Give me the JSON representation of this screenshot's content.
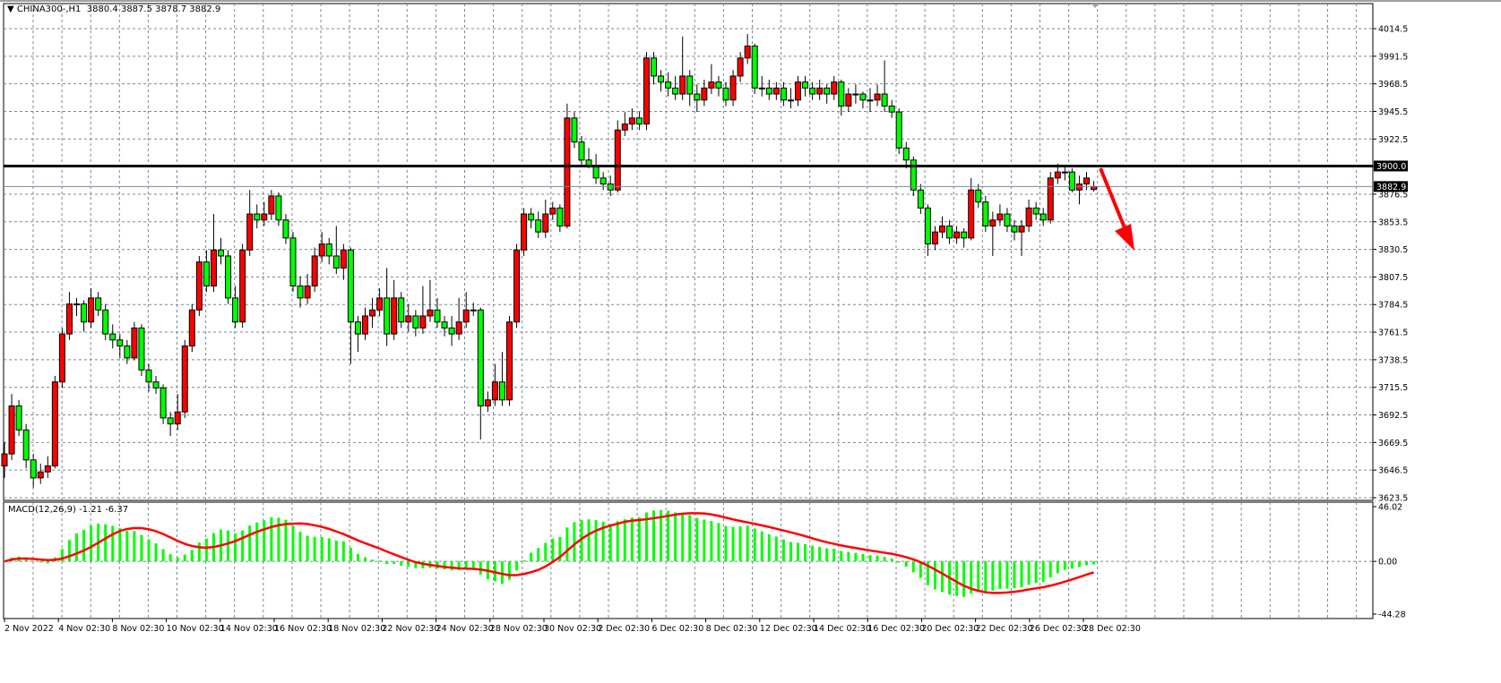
{
  "header": {
    "symbol": "CHINA300-,H1",
    "ohlc_text": "3880.4 3887.5 3878.7 3882.9"
  },
  "macd": {
    "label": "MACD(12,26,9)",
    "main": "-1.21",
    "signal": "-6.37",
    "axis_labels": [
      "46.02",
      "0.00",
      "-44.28"
    ],
    "axis_values": [
      46.02,
      0,
      -44.28
    ],
    "histogram_color": "#00ff00",
    "signal_color": "#ff0000"
  },
  "chart_data": {
    "type": "candlestick",
    "symbol": "CHINA300-",
    "timeframe": "H1",
    "ylim": [
      3623.5,
      4014.5
    ],
    "y_ticks": [
      "4014.5",
      "3991.5",
      "3968.5",
      "3945.5",
      "3922.5",
      "3876.5",
      "3853.5",
      "3830.5",
      "3807.5",
      "3784.5",
      "3761.5",
      "3738.5",
      "3715.5",
      "3692.5",
      "3669.5",
      "3646.5",
      "3623.5"
    ],
    "x_ticks": [
      "2 Nov 2022",
      "4 Nov 02:30",
      "8 Nov 02:30",
      "10 Nov 02:30",
      "14 Nov 02:30",
      "16 Nov 02:30",
      "18 Nov 02:30",
      "22 Nov 02:30",
      "24 Nov 02:30",
      "28 Nov 02:30",
      "30 Nov 02:30",
      "2 Dec 02:30",
      "6 Dec 02:30",
      "8 Dec 02:30",
      "12 Dec 02:30",
      "14 Dec 02:30",
      "16 Dec 02:30",
      "20 Dec 02:30",
      "22 Dec 02:30",
      "26 Dec 02:30",
      "28 Dec 02:30"
    ],
    "grid": true,
    "bull_color": "#ff0000",
    "bear_color": "#00ff00",
    "horizontal_line": {
      "value": 3900.0,
      "label": "3900.0",
      "color": "#000000"
    },
    "bid_line": {
      "value": 3882.9,
      "label": "3882.9",
      "color": "#778899"
    },
    "annotation": {
      "type": "arrow",
      "direction": "down",
      "color": "#ff0000"
    },
    "ohlc": [
      [
        3650,
        3670,
        3640,
        3660
      ],
      [
        3660,
        3710,
        3655,
        3700
      ],
      [
        3700,
        3705,
        3675,
        3680
      ],
      [
        3680,
        3685,
        3648,
        3655
      ],
      [
        3655,
        3660,
        3632,
        3640
      ],
      [
        3640,
        3652,
        3635,
        3645
      ],
      [
        3645,
        3658,
        3640,
        3650
      ],
      [
        3650,
        3725,
        3648,
        3720
      ],
      [
        3720,
        3765,
        3715,
        3760
      ],
      [
        3760,
        3795,
        3755,
        3785
      ],
      [
        3785,
        3790,
        3775,
        3785
      ],
      [
        3785,
        3788,
        3762,
        3770
      ],
      [
        3770,
        3798,
        3765,
        3790
      ],
      [
        3790,
        3795,
        3775,
        3780
      ],
      [
        3780,
        3785,
        3755,
        3760
      ],
      [
        3760,
        3768,
        3748,
        3755
      ],
      [
        3755,
        3760,
        3740,
        3750
      ],
      [
        3750,
        3755,
        3735,
        3740
      ],
      [
        3740,
        3770,
        3738,
        3765
      ],
      [
        3765,
        3768,
        3725,
        3730
      ],
      [
        3730,
        3735,
        3712,
        3720
      ],
      [
        3720,
        3725,
        3710,
        3715
      ],
      [
        3715,
        3718,
        3685,
        3690
      ],
      [
        3690,
        3695,
        3675,
        3685
      ],
      [
        3685,
        3710,
        3680,
        3695
      ],
      [
        3695,
        3755,
        3690,
        3750
      ],
      [
        3750,
        3785,
        3745,
        3780
      ],
      [
        3780,
        3825,
        3775,
        3820
      ],
      [
        3820,
        3830,
        3795,
        3800
      ],
      [
        3800,
        3860,
        3795,
        3830
      ],
      [
        3830,
        3840,
        3818,
        3825
      ],
      [
        3825,
        3830,
        3785,
        3790
      ],
      [
        3790,
        3800,
        3765,
        3770
      ],
      [
        3770,
        3835,
        3765,
        3830
      ],
      [
        3830,
        3880,
        3825,
        3860
      ],
      [
        3860,
        3868,
        3848,
        3855
      ],
      [
        3855,
        3870,
        3850,
        3860
      ],
      [
        3860,
        3880,
        3855,
        3875
      ],
      [
        3875,
        3878,
        3850,
        3855
      ],
      [
        3855,
        3860,
        3835,
        3840
      ],
      [
        3840,
        3845,
        3795,
        3800
      ],
      [
        3800,
        3808,
        3782,
        3790
      ],
      [
        3790,
        3810,
        3785,
        3800
      ],
      [
        3800,
        3832,
        3795,
        3825
      ],
      [
        3825,
        3845,
        3820,
        3835
      ],
      [
        3835,
        3840,
        3818,
        3825
      ],
      [
        3825,
        3850,
        3810,
        3815
      ],
      [
        3815,
        3835,
        3805,
        3830
      ],
      [
        3830,
        3832,
        3735,
        3770
      ],
      [
        3770,
        3775,
        3745,
        3760
      ],
      [
        3760,
        3782,
        3755,
        3775
      ],
      [
        3775,
        3790,
        3765,
        3780
      ],
      [
        3780,
        3798,
        3775,
        3790
      ],
      [
        3790,
        3815,
        3750,
        3760
      ],
      [
        3760,
        3805,
        3755,
        3790
      ],
      [
        3790,
        3795,
        3765,
        3770
      ],
      [
        3770,
        3785,
        3762,
        3775
      ],
      [
        3775,
        3780,
        3758,
        3765
      ],
      [
        3765,
        3800,
        3760,
        3775
      ],
      [
        3775,
        3805,
        3770,
        3780
      ],
      [
        3780,
        3790,
        3765,
        3770
      ],
      [
        3770,
        3775,
        3758,
        3765
      ],
      [
        3765,
        3775,
        3750,
        3760
      ],
      [
        3760,
        3790,
        3755,
        3770
      ],
      [
        3770,
        3795,
        3765,
        3780
      ],
      [
        3780,
        3786,
        3775,
        3780
      ],
      [
        3780,
        3782,
        3672,
        3700
      ],
      [
        3700,
        3712,
        3695,
        3705
      ],
      [
        3705,
        3735,
        3700,
        3720
      ],
      [
        3720,
        3745,
        3700,
        3705
      ],
      [
        3705,
        3775,
        3700,
        3770
      ],
      [
        3770,
        3835,
        3765,
        3830
      ],
      [
        3830,
        3865,
        3825,
        3860
      ],
      [
        3860,
        3865,
        3848,
        3855
      ],
      [
        3855,
        3862,
        3840,
        3845
      ],
      [
        3845,
        3872,
        3840,
        3860
      ],
      [
        3860,
        3870,
        3855,
        3865
      ],
      [
        3865,
        3868,
        3845,
        3850
      ],
      [
        3850,
        3952,
        3848,
        3940
      ],
      [
        3940,
        3945,
        3915,
        3920
      ],
      [
        3920,
        3925,
        3900,
        3905
      ],
      [
        3905,
        3915,
        3898,
        3900
      ],
      [
        3900,
        3910,
        3885,
        3890
      ],
      [
        3890,
        3895,
        3880,
        3885
      ],
      [
        3885,
        3892,
        3875,
        3880
      ],
      [
        3880,
        3938,
        3878,
        3930
      ],
      [
        3930,
        3945,
        3925,
        3935
      ],
      [
        3935,
        3948,
        3930,
        3940
      ],
      [
        3940,
        3945,
        3930,
        3935
      ],
      [
        3935,
        3995,
        3930,
        3990
      ],
      [
        3990,
        3995,
        3968,
        3975
      ],
      [
        3975,
        3980,
        3962,
        3970
      ],
      [
        3970,
        3978,
        3958,
        3965
      ],
      [
        3965,
        3975,
        3955,
        3960
      ],
      [
        3960,
        4008,
        3955,
        3975
      ],
      [
        3975,
        3980,
        3950,
        3960
      ],
      [
        3960,
        3968,
        3945,
        3955
      ],
      [
        3955,
        3972,
        3950,
        3965
      ],
      [
        3965,
        3985,
        3960,
        3970
      ],
      [
        3970,
        3975,
        3958,
        3965
      ],
      [
        3965,
        3970,
        3950,
        3955
      ],
      [
        3955,
        3980,
        3950,
        3975
      ],
      [
        3975,
        3995,
        3970,
        3990
      ],
      [
        3990,
        4010,
        3985,
        4000
      ],
      [
        4000,
        4002,
        3960,
        3965
      ],
      [
        3965,
        3975,
        3958,
        3965
      ],
      [
        3965,
        3972,
        3955,
        3960
      ],
      [
        3960,
        3970,
        3955,
        3965
      ],
      [
        3965,
        3970,
        3950,
        3955
      ],
      [
        3955,
        3965,
        3948,
        3955
      ],
      [
        3955,
        3975,
        3950,
        3970
      ],
      [
        3970,
        3975,
        3958,
        3965
      ],
      [
        3965,
        3970,
        3955,
        3960
      ],
      [
        3960,
        3972,
        3955,
        3965
      ],
      [
        3965,
        3968,
        3952,
        3960
      ],
      [
        3960,
        3975,
        3955,
        3970
      ],
      [
        3970,
        3972,
        3942,
        3950
      ],
      [
        3950,
        3965,
        3945,
        3960
      ],
      [
        3960,
        3968,
        3952,
        3960
      ],
      [
        3960,
        3962,
        3948,
        3955
      ],
      [
        3955,
        3965,
        3945,
        3955
      ],
      [
        3955,
        3968,
        3950,
        3960
      ],
      [
        3960,
        3988,
        3945,
        3950
      ],
      [
        3950,
        3955,
        3940,
        3945
      ],
      [
        3945,
        3948,
        3910,
        3915
      ],
      [
        3915,
        3920,
        3898,
        3905
      ],
      [
        3905,
        3908,
        3875,
        3880
      ],
      [
        3880,
        3885,
        3860,
        3865
      ],
      [
        3865,
        3868,
        3825,
        3835
      ],
      [
        3835,
        3850,
        3830,
        3845
      ],
      [
        3845,
        3858,
        3840,
        3850
      ],
      [
        3850,
        3855,
        3835,
        3840
      ],
      [
        3840,
        3850,
        3835,
        3845
      ],
      [
        3845,
        3848,
        3832,
        3840
      ],
      [
        3840,
        3890,
        3838,
        3880
      ],
      [
        3880,
        3885,
        3865,
        3870
      ],
      [
        3870,
        3875,
        3845,
        3850
      ],
      [
        3850,
        3862,
        3825,
        3855
      ],
      [
        3855,
        3868,
        3850,
        3860
      ],
      [
        3860,
        3865,
        3845,
        3850
      ],
      [
        3850,
        3855,
        3838,
        3845
      ],
      [
        3845,
        3855,
        3825,
        3850
      ],
      [
        3850,
        3872,
        3845,
        3865
      ],
      [
        3865,
        3870,
        3855,
        3860
      ],
      [
        3860,
        3865,
        3850,
        3855
      ],
      [
        3855,
        3895,
        3852,
        3890
      ],
      [
        3890,
        3902,
        3885,
        3895
      ],
      [
        3895,
        3900,
        3888,
        3895
      ],
      [
        3895,
        3898,
        3878,
        3880
      ],
      [
        3880,
        3892,
        3868,
        3885
      ],
      [
        3885,
        3895,
        3880,
        3890
      ],
      [
        3880.4,
        3887.5,
        3878.7,
        3882.9
      ]
    ]
  }
}
